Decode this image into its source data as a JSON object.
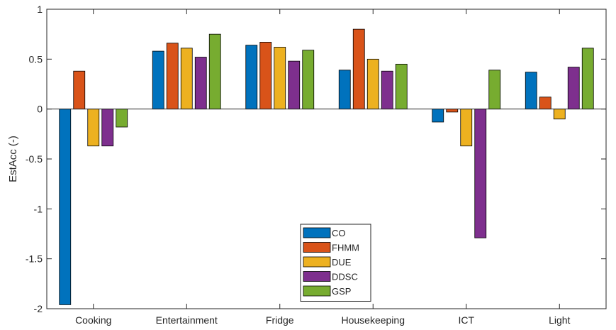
{
  "chart_data": {
    "type": "bar",
    "title": "",
    "xlabel": "",
    "ylabel": "EstAcc (-)",
    "ylim": [
      -2,
      1
    ],
    "yticks": [
      -2,
      -1.5,
      -1,
      -0.5,
      0,
      0.5,
      1
    ],
    "ytick_labels": [
      "-2",
      "-1.5",
      "-1",
      "-0.5",
      "0",
      "0.5",
      "1"
    ],
    "grid": false,
    "legend_position": "bottom-center",
    "categories": [
      "Cooking",
      "Entertainment",
      "Fridge",
      "Housekeeping",
      "ICT",
      "Light"
    ],
    "series": [
      {
        "name": "CO",
        "color": "#0072BD",
        "values": [
          -1.96,
          0.58,
          0.64,
          0.39,
          -0.13,
          0.37
        ]
      },
      {
        "name": "FHMM",
        "color": "#D95319",
        "values": [
          0.38,
          0.66,
          0.67,
          0.8,
          -0.03,
          0.12
        ]
      },
      {
        "name": "DUE",
        "color": "#EDB120",
        "values": [
          -0.37,
          0.61,
          0.62,
          0.5,
          -0.37,
          -0.1
        ]
      },
      {
        "name": "DDSC",
        "color": "#7E2F8E",
        "values": [
          -0.37,
          0.52,
          0.48,
          0.38,
          -1.29,
          0.42
        ]
      },
      {
        "name": "GSP",
        "color": "#77AC30",
        "values": [
          -0.18,
          0.75,
          0.59,
          0.45,
          0.39,
          0.61
        ]
      }
    ]
  }
}
